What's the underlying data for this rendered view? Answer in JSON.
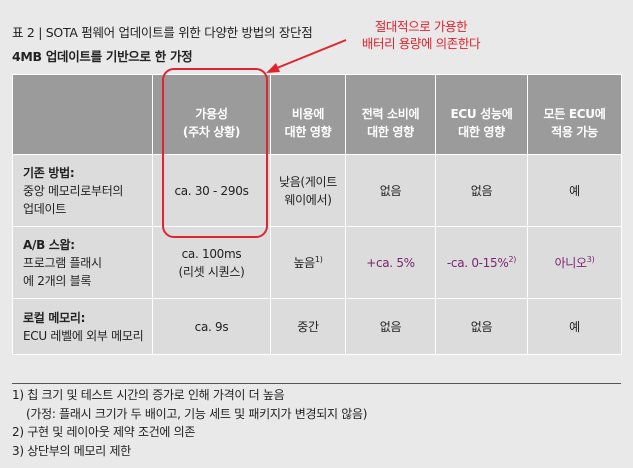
{
  "caption": {
    "title": "표 2 | SOTA 펌웨어 업데이트를 위한 다양한 방법의 장단점",
    "subtitle": "4MB 업데이트를 기반으로 한 가정"
  },
  "callout": {
    "line1": "절대적으로 가용한",
    "line2": "배터리 용량에 의존한다",
    "color": "#e0232d"
  },
  "table": {
    "headers": [
      "",
      "가용성\n(주차 상황)",
      "비용에\n대한 영향",
      "전력 소비에\n대한 영향",
      "ECU 성능에\n대한 영향",
      "모든 ECU에\n적용 가능"
    ],
    "rows": [
      {
        "name": "기존 방법:",
        "desc": "중앙 메모리로부터의\n업데이트",
        "cells": [
          "ca. 30 - 290s",
          "낮음(게이트\n웨이에서)",
          "없음",
          "없음",
          "예"
        ]
      },
      {
        "name": "A/B 스왑:",
        "desc": "프로그램 플래시\n에 2개의 블록",
        "cells": [
          "ca. 100ms\n(리셋 시퀀스)",
          "높음",
          "+ca. 5%",
          "-ca. 0-15%",
          "아니오"
        ],
        "sups": [
          "",
          "1)",
          "",
          "2)",
          "3)"
        ]
      },
      {
        "name": "로컬 메모리:",
        "desc": "ECU 레벨에 외부 메모리",
        "cells": [
          "ca. 9s",
          "중간",
          "없음",
          "없음",
          "예"
        ]
      }
    ],
    "header_color": "#9b9b9b",
    "cell_color": "#dcdcdc",
    "accent_text_color": "#7b2570"
  },
  "notes": [
    "1) 칩 크기 및 테스트 시간의 증가로 인해 가격이 더 높음",
    "(가정: 플래시 크기가 두 배이고, 기능 세트 및 패키지가 변경되지 않음)",
    "2) 구현 및 레이아웃 제약 조건에 의존",
    "3) 상단부의 메모리 제한"
  ]
}
